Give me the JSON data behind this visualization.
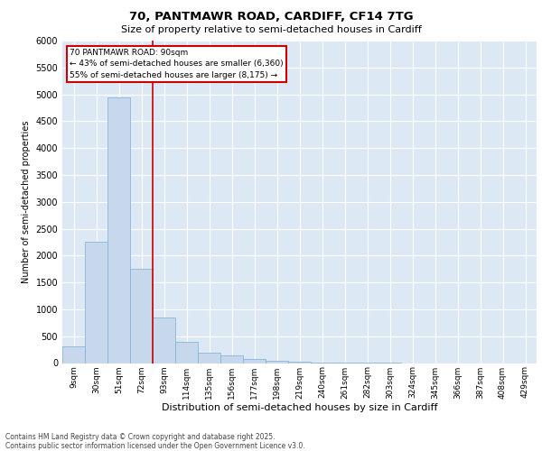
{
  "title_line1": "70, PANTMAWR ROAD, CARDIFF, CF14 7TG",
  "title_line2": "Size of property relative to semi-detached houses in Cardiff",
  "xlabel": "Distribution of semi-detached houses by size in Cardiff",
  "ylabel": "Number of semi-detached properties",
  "categories": [
    "9sqm",
    "30sqm",
    "51sqm",
    "72sqm",
    "93sqm",
    "114sqm",
    "135sqm",
    "156sqm",
    "177sqm",
    "198sqm",
    "219sqm",
    "240sqm",
    "261sqm",
    "282sqm",
    "303sqm",
    "324sqm",
    "345sqm",
    "366sqm",
    "387sqm",
    "408sqm",
    "429sqm"
  ],
  "values": [
    310,
    2250,
    4950,
    1750,
    840,
    390,
    200,
    150,
    80,
    50,
    30,
    10,
    5,
    2,
    1,
    0,
    0,
    0,
    0,
    0,
    0
  ],
  "bar_color": "#c8d8ec",
  "bar_edge_color": "#7aafd4",
  "vline_color": "#cc0000",
  "vline_x": 3.5,
  "annotation_title": "70 PANTMAWR ROAD: 90sqm",
  "annotation_line1": "← 43% of semi-detached houses are smaller (6,360)",
  "annotation_line2": "55% of semi-detached houses are larger (8,175) →",
  "annotation_box_color": "#cc0000",
  "annotation_text_color": "#000000",
  "ylim": [
    0,
    6000
  ],
  "yticks": [
    0,
    500,
    1000,
    1500,
    2000,
    2500,
    3000,
    3500,
    4000,
    4500,
    5000,
    5500,
    6000
  ],
  "background_color": "#dde8f5",
  "grid_color": "#ffffff",
  "footer_line1": "Contains HM Land Registry data © Crown copyright and database right 2025.",
  "footer_line2": "Contains public sector information licensed under the Open Government Licence v3.0."
}
